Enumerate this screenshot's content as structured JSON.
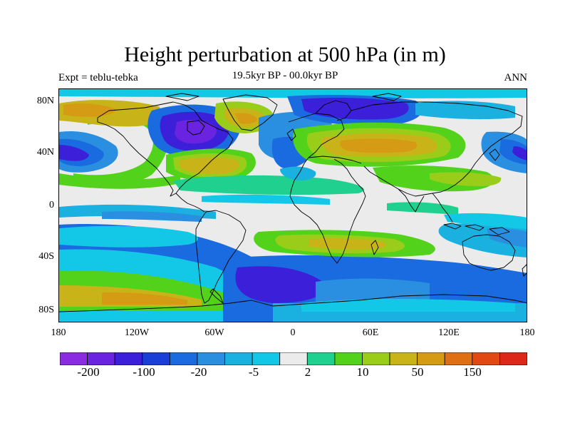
{
  "title": "Height perturbation at 500 hPa (in m)",
  "subtitle_left": "Expt = teblu-tebka",
  "subtitle_center": "19.5kyr BP - 00.0kyr BP",
  "subtitle_right": "ANN",
  "lat_ticks": [
    "80N",
    "40N",
    "0",
    "40S",
    "80S"
  ],
  "lon_ticks": [
    "180",
    "120W",
    "60W",
    "0",
    "60E",
    "120E",
    "180"
  ],
  "colorbar": {
    "colors": [
      "#8a2be2",
      "#6a23e0",
      "#3c1fd9",
      "#1a3fd6",
      "#1a6ae0",
      "#2a8fe0",
      "#1ab0e0",
      "#12c8e6",
      "#ebebeb",
      "#1fd08f",
      "#52d21a",
      "#9acd1a",
      "#c8b419",
      "#d69b14",
      "#e06e12",
      "#e04a12",
      "#dc2818"
    ],
    "labels": [
      "-200",
      "-100",
      "-20",
      "-5",
      "2",
      "10",
      "50",
      "150"
    ]
  },
  "map": {
    "projection": "cylindrical-equidistant",
    "lon_range": [
      -180,
      180
    ],
    "lat_range": [
      -90,
      90
    ]
  },
  "colors": {
    "background": "#ffffff",
    "neutral": "#ebebeb",
    "coastline": "#000000"
  }
}
